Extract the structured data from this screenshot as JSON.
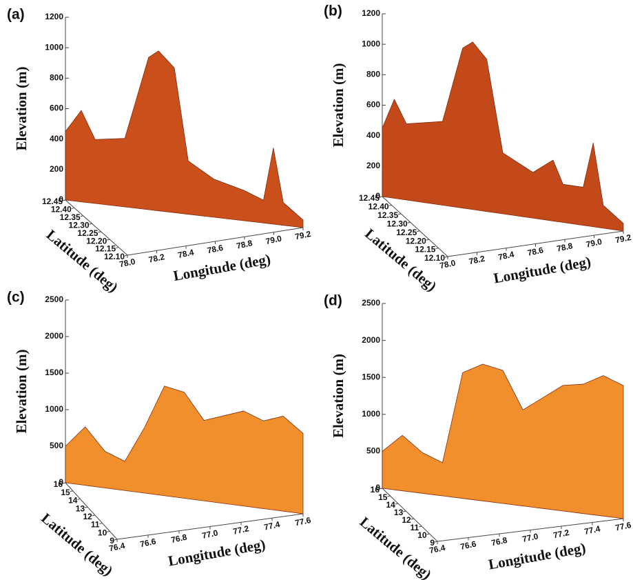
{
  "chart_data": [
    {
      "type": "surface",
      "title": "(a)",
      "xlabel": "Longitude (deg)",
      "ylabel": "Latitude (deg)",
      "zlabel": "Elevation (m)",
      "color": "#c8460f",
      "xlim": [
        78.0,
        79.2
      ],
      "xticks": [
        {
          "value": 78.0,
          "label": "78.0"
        },
        78.2,
        78.4,
        78.6,
        78.8,
        {
          "value": 79.0,
          "label": "79.0"
        },
        79.2
      ],
      "ylim": [
        12.1,
        12.45
      ],
      "yticks": [
        {
          "value": 12.1,
          "label": "12.10"
        },
        12.15,
        {
          "value": 12.2,
          "label": "12.20"
        },
        12.25,
        {
          "value": 12.3,
          "label": "12.30"
        },
        12.35,
        {
          "value": 12.4,
          "label": "12.40"
        },
        12.45
      ],
      "zlim": [
        0,
        1200
      ],
      "zticks": [
        0,
        200,
        400,
        600,
        800,
        1000,
        1200
      ],
      "x": [
        78.0,
        78.08,
        78.15,
        78.3,
        78.42,
        78.47,
        78.55,
        78.62,
        78.75,
        78.9,
        79.0,
        79.05,
        79.1,
        79.2
      ],
      "values": [
        450,
        600,
        420,
        450,
        1000,
        1050,
        950,
        350,
        250,
        200,
        150,
        500,
        150,
        50
      ]
    },
    {
      "type": "surface",
      "title": "(b)",
      "xlabel": "Longitude (deg)",
      "ylabel": "Latitude (deg)",
      "zlabel": "Elevation (m)",
      "color": "#c0400e",
      "xlim": [
        78.0,
        79.2
      ],
      "xticks": [
        {
          "value": 78.0,
          "label": "78.0"
        },
        78.2,
        78.4,
        78.6,
        78.8,
        {
          "value": 79.0,
          "label": "79.0"
        },
        79.2
      ],
      "ylim": [
        12.1,
        12.45
      ],
      "yticks": [
        {
          "value": 12.1,
          "label": "12.10"
        },
        12.15,
        {
          "value": 12.2,
          "label": "12.20"
        },
        12.25,
        {
          "value": 12.3,
          "label": "12.30"
        },
        12.35,
        {
          "value": 12.4,
          "label": "12.40"
        },
        12.45
      ],
      "zlim": [
        0,
        1200
      ],
      "zticks": [
        0,
        200,
        400,
        600,
        800,
        1000,
        1200
      ],
      "x": [
        78.0,
        78.06,
        78.12,
        78.3,
        78.4,
        78.45,
        78.52,
        78.6,
        78.75,
        78.85,
        78.9,
        79.0,
        79.05,
        79.1,
        79.2
      ],
      "values": [
        450,
        650,
        500,
        550,
        1050,
        1100,
        1000,
        400,
        300,
        400,
        250,
        250,
        550,
        150,
        50
      ]
    },
    {
      "type": "surface",
      "title": "(c)",
      "xlabel": "Longitude (deg)",
      "ylabel": "Latitude (deg)",
      "zlabel": "Elevation (m)",
      "color": "#f28a22",
      "xlim": [
        76.4,
        77.6
      ],
      "xticks": [
        76.4,
        76.6,
        76.8,
        {
          "value": 77.0,
          "label": "77.0"
        },
        77.2,
        77.4,
        77.6
      ],
      "ylim": [
        9,
        16
      ],
      "yticks": [
        9,
        10,
        11,
        12,
        13,
        14,
        15,
        16
      ],
      "zlim": [
        0,
        2500
      ],
      "zticks": [
        0,
        500,
        1000,
        1500,
        2000,
        2500
      ],
      "x": [
        76.4,
        76.5,
        76.6,
        76.7,
        76.8,
        76.9,
        77.0,
        77.1,
        77.2,
        77.3,
        77.4,
        77.5,
        77.6
      ],
      "values": [
        500,
        800,
        500,
        400,
        900,
        1500,
        1450,
        1100,
        1200,
        1300,
        1200,
        1300,
        1100
      ]
    },
    {
      "type": "surface",
      "title": "(d)",
      "xlabel": "Longitude (deg)",
      "ylabel": "Latitude (deg)",
      "zlabel": "Elevation (m)",
      "color": "#f28a22",
      "xlim": [
        76.4,
        77.6
      ],
      "xticks": [
        76.4,
        76.6,
        76.8,
        {
          "value": 77.0,
          "label": "77.0"
        },
        77.2,
        77.4,
        77.6
      ],
      "ylim": [
        9,
        16
      ],
      "yticks": [
        9,
        10,
        11,
        12,
        13,
        14,
        15,
        16
      ],
      "zlim": [
        0,
        2500
      ],
      "zticks": [
        0,
        500,
        1000,
        1500,
        2000,
        2500
      ],
      "x": [
        76.4,
        76.5,
        76.6,
        76.7,
        76.8,
        76.9,
        77.0,
        77.1,
        77.2,
        77.3,
        77.4,
        77.5,
        77.6
      ],
      "values": [
        500,
        750,
        550,
        450,
        1700,
        1850,
        1800,
        1300,
        1500,
        1700,
        1750,
        1900,
        1800
      ]
    }
  ]
}
